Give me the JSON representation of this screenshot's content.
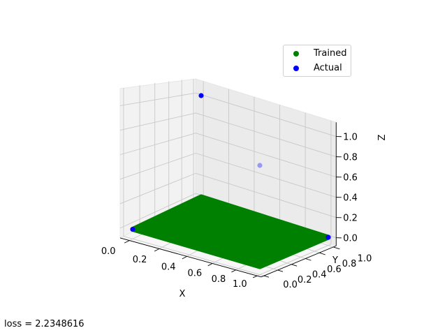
{
  "chart_data": {
    "type": "scatter",
    "projection": "3d",
    "xlabel": "X",
    "ylabel": "Y",
    "zlabel": "Z",
    "xlim": [
      0,
      1
    ],
    "ylim": [
      0,
      1
    ],
    "zlim": [
      0,
      1
    ],
    "x_ticks": [
      "0.0",
      "0.2",
      "0.4",
      "0.6",
      "0.8",
      "1.0"
    ],
    "y_ticks": [
      "0.0",
      "0.2",
      "0.4",
      "0.6",
      "0.8",
      "1.0"
    ],
    "z_ticks": [
      "0.0",
      "0.2",
      "0.4",
      "0.6",
      "0.8",
      "1.0"
    ],
    "grid": true,
    "legend_position": "top-right",
    "series": [
      {
        "name": "Trained",
        "color": "#008000",
        "surface": {
          "x_range": [
            0,
            1
          ],
          "y_range": [
            0,
            1
          ],
          "z": 0.0
        }
      },
      {
        "name": "Actual",
        "color": "#0000ff",
        "points": [
          {
            "x": 0,
            "y": 0,
            "z": 0
          },
          {
            "x": 1,
            "y": 1,
            "z": 0
          },
          {
            "x": 1,
            "y": 0,
            "z": 1
          },
          {
            "x": 0,
            "y": 1,
            "z": 1
          }
        ]
      }
    ],
    "annotation": "loss = 2.2348616"
  }
}
